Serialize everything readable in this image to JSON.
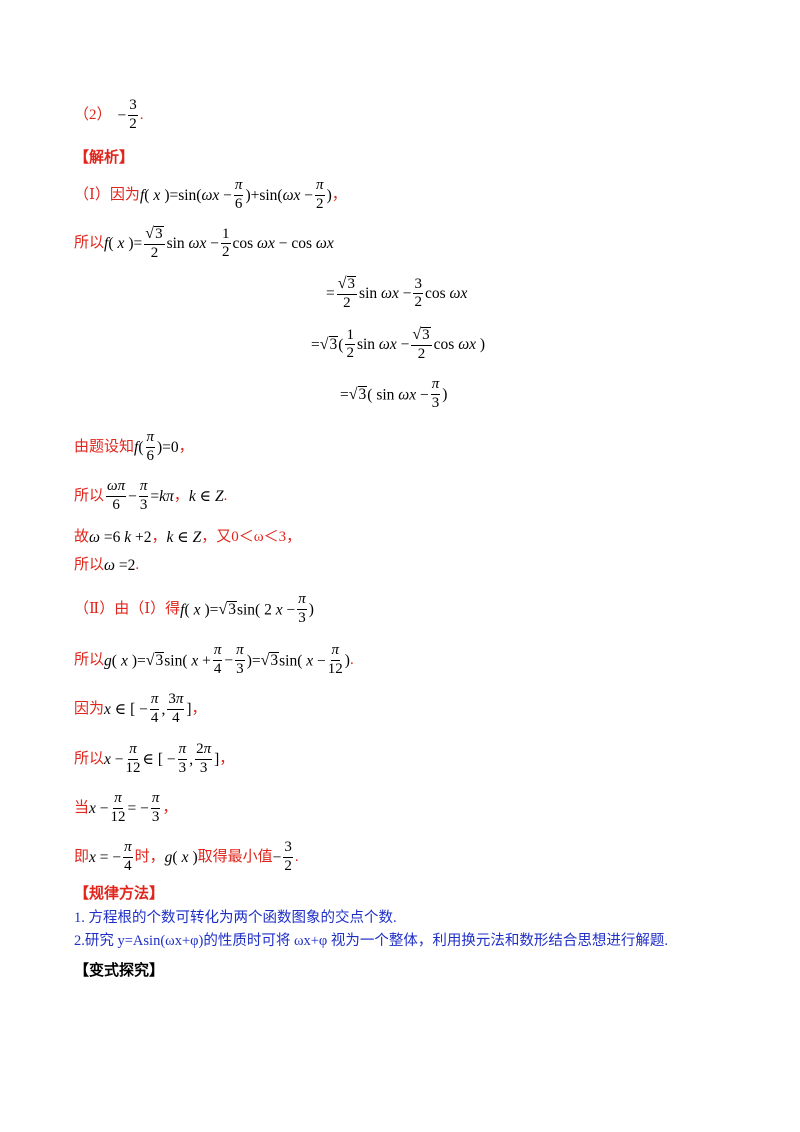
{
  "answer2": {
    "label": "（2）",
    "minus": "−",
    "num": "3",
    "den": "2",
    "end": "."
  },
  "analysis_header": "【解析】",
  "part1": {
    "label": "（Ⅰ）因为"
  },
  "so_label": "所以",
  "given_label": "由题设知",
  "so2_label": "所以",
  "therefore_label": "故",
  "part1_cond": "，又0＜ω＜3，",
  "so3_label": "所以",
  "part2": {
    "label": "（Ⅱ）由（Ⅰ）得"
  },
  "so4_label": "所以",
  "because_label": "因为",
  "so5_label": "所以",
  "when_label": "当",
  "i_e_label": "即",
  "when_suffix": "时，",
  "min_text": "取得最小值",
  "method_header": "【规律方法】",
  "method_items": [
    "1. 方程根的个数可转化为两个函数图象的交点个数.",
    "2.研究 y=Asin(ωx+φ)的性质时可将 ωx+φ 视为一个整体，利用换元法和数形结合思想进行解题."
  ],
  "variant_header": "【变式探究】"
}
